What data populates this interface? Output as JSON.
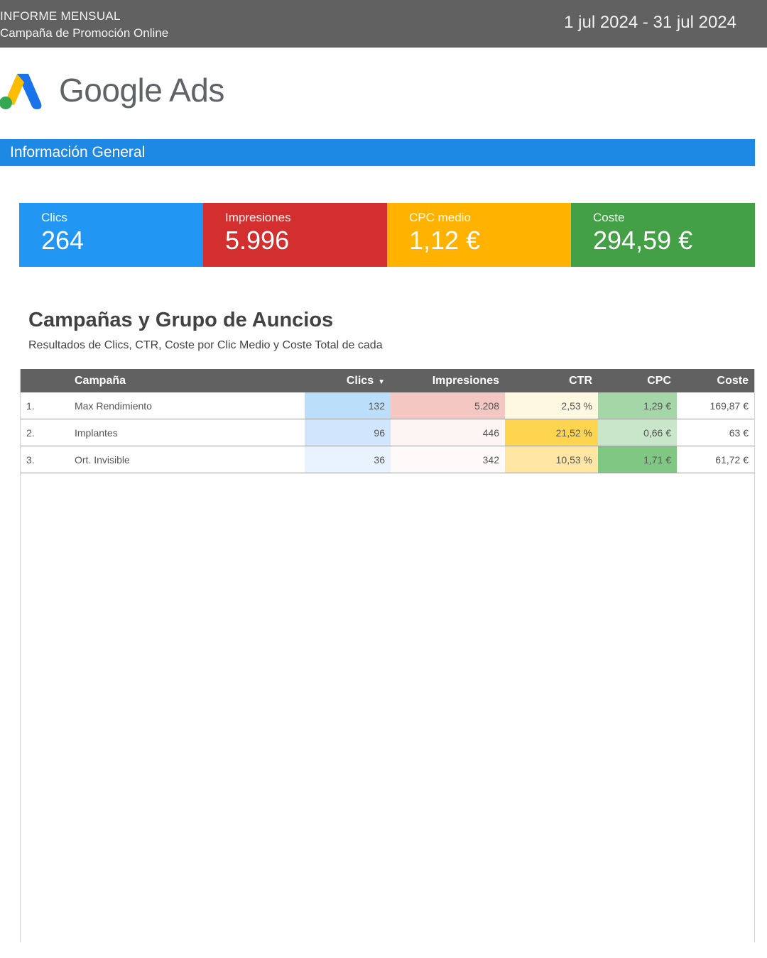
{
  "header": {
    "line1": "INFORME MENSUAL",
    "line2": "Campaña de Promoción Online",
    "date_range": "1 jul 2024 - 31 jul 2024"
  },
  "brand": {
    "name": "Google Ads",
    "logo_icon": "google-ads-logo"
  },
  "section_title": "Información General",
  "kpis": [
    {
      "label": "Clics",
      "value": "264",
      "color": "#2196f3"
    },
    {
      "label": "Impresiones",
      "value": "5.996",
      "color": "#d32f2f"
    },
    {
      "label": "CPC medio",
      "value": "1,12 €",
      "color": "#ffb300"
    },
    {
      "label": "Coste",
      "value": "294,59 €",
      "color": "#43a047"
    }
  ],
  "table_section": {
    "title": "Campañas y Grupo de Auncios",
    "subtitle": "Resultados de Clics, CTR, Coste por Clic Medio y Coste Total de cada",
    "columns": [
      "Campaña",
      "Clics",
      "Impresiones",
      "CTR",
      "CPC",
      "Coste"
    ],
    "sort_indicator": "▼",
    "rows": [
      {
        "idx": "1.",
        "campaign": "Max Rendimiento",
        "clics": "132",
        "impresiones": "5.208",
        "ctr": "2,53 %",
        "cpc": "1,29 €",
        "coste": "169,87 €",
        "colors": {
          "clics": "#bbdefb",
          "impresiones": "#f4c7c3",
          "ctr": "#fff8e1",
          "cpc": "#a5d6a7"
        }
      },
      {
        "idx": "2.",
        "campaign": "Implantes",
        "clics": "96",
        "impresiones": "446",
        "ctr": "21,52 %",
        "cpc": "0,66 €",
        "coste": "63 €",
        "colors": {
          "clics": "#cfe6fc",
          "impresiones": "#fdf5f4",
          "ctr": "#ffd54f",
          "cpc": "#c8e6c9"
        }
      },
      {
        "idx": "3.",
        "campaign": "Ort. Invisible",
        "clics": "36",
        "impresiones": "342",
        "ctr": "10,53 %",
        "cpc": "1,71 €",
        "coste": "61,72 €",
        "colors": {
          "clics": "#e9f3fd",
          "impresiones": "#fefafa",
          "ctr": "#ffe7a3",
          "cpc": "#81c784"
        }
      }
    ]
  }
}
